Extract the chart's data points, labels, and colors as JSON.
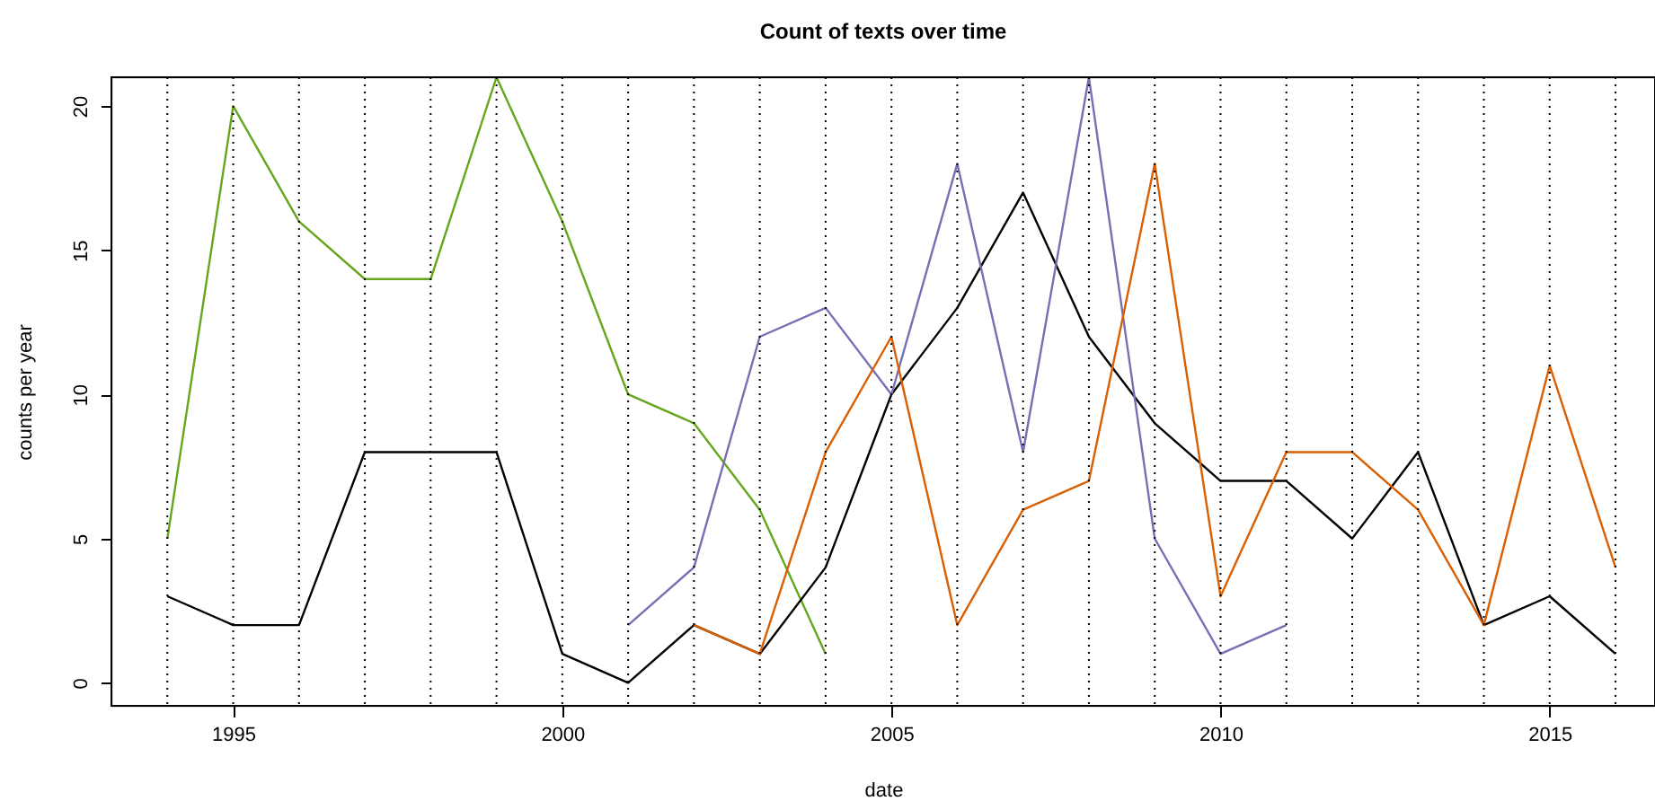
{
  "chart_data": {
    "type": "line",
    "title": "Count of texts over time",
    "xlabel": "date",
    "ylabel": "counts per year",
    "xlim": [
      1993.15,
      2016.6
    ],
    "ylim": [
      -0.8,
      21
    ],
    "xticks": [
      1995,
      2000,
      2005,
      2010,
      2015
    ],
    "yticks": [
      0,
      5,
      10,
      15,
      20
    ],
    "grid": false,
    "line_style": "solid",
    "ref_lines": [
      {
        "axis": "x",
        "value": 1994,
        "line_style": "dotted"
      },
      {
        "axis": "x",
        "value": 1995,
        "line_style": "dotted"
      },
      {
        "axis": "x",
        "value": 1996,
        "line_style": "dotted"
      },
      {
        "axis": "x",
        "value": 1997,
        "line_style": "dotted"
      },
      {
        "axis": "x",
        "value": 1998,
        "line_style": "dotted"
      },
      {
        "axis": "x",
        "value": 1999,
        "line_style": "dotted"
      },
      {
        "axis": "x",
        "value": 2000,
        "line_style": "dotted"
      },
      {
        "axis": "x",
        "value": 2001,
        "line_style": "dotted"
      },
      {
        "axis": "x",
        "value": 2002,
        "line_style": "dotted"
      },
      {
        "axis": "x",
        "value": 2003,
        "line_style": "dotted"
      },
      {
        "axis": "x",
        "value": 2004,
        "line_style": "dotted"
      },
      {
        "axis": "x",
        "value": 2005,
        "line_style": "dotted"
      },
      {
        "axis": "x",
        "value": 2006,
        "line_style": "dotted"
      },
      {
        "axis": "x",
        "value": 2007,
        "line_style": "dotted"
      },
      {
        "axis": "x",
        "value": 2008,
        "line_style": "dotted"
      },
      {
        "axis": "x",
        "value": 2009,
        "line_style": "dotted"
      },
      {
        "axis": "x",
        "value": 2010,
        "line_style": "dotted"
      },
      {
        "axis": "x",
        "value": 2011,
        "line_style": "dotted"
      },
      {
        "axis": "x",
        "value": 2012,
        "line_style": "dotted"
      },
      {
        "axis": "x",
        "value": 2013,
        "line_style": "dotted"
      },
      {
        "axis": "x",
        "value": 2014,
        "line_style": "dotted"
      },
      {
        "axis": "x",
        "value": 2015,
        "line_style": "dotted"
      },
      {
        "axis": "x",
        "value": 2016,
        "line_style": "dotted"
      }
    ],
    "series": [
      {
        "color": "#66a61e",
        "x": [
          1994,
          1995,
          1996,
          1997,
          1998,
          1999,
          2000,
          2001,
          2002,
          2003,
          2004
        ],
        "values": [
          5,
          20,
          16,
          14,
          14,
          21,
          16,
          10,
          9,
          6,
          1
        ]
      },
      {
        "color": "#000000",
        "x": [
          1994,
          1995,
          1996,
          1997,
          1998,
          1999,
          2000,
          2001,
          2002,
          2003,
          2004,
          2005,
          2006,
          2007,
          2008,
          2009,
          2010,
          2011,
          2012,
          2013,
          2014,
          2015,
          2016
        ],
        "values": [
          3,
          2,
          2,
          8,
          8,
          8,
          1,
          0,
          2,
          1,
          4,
          10,
          13,
          17,
          12,
          9,
          7,
          7,
          5,
          8,
          2,
          3,
          1
        ]
      },
      {
        "color": "#7570b3",
        "x": [
          2001,
          2002,
          2003,
          2004,
          2005,
          2006,
          2007,
          2008,
          2009,
          2010,
          2011
        ],
        "values": [
          2,
          4,
          12,
          13,
          10,
          18,
          8,
          21,
          5,
          1,
          2
        ]
      },
      {
        "color": "#d95f02",
        "x": [
          2002,
          2003,
          2004,
          2005,
          2006,
          2007,
          2008,
          2009,
          2010,
          2011,
          2012,
          2013,
          2014,
          2015,
          2016
        ],
        "values": [
          2,
          1,
          8,
          12,
          2,
          6,
          7,
          18,
          3,
          8,
          8,
          6,
          2,
          11,
          4
        ]
      }
    ]
  }
}
